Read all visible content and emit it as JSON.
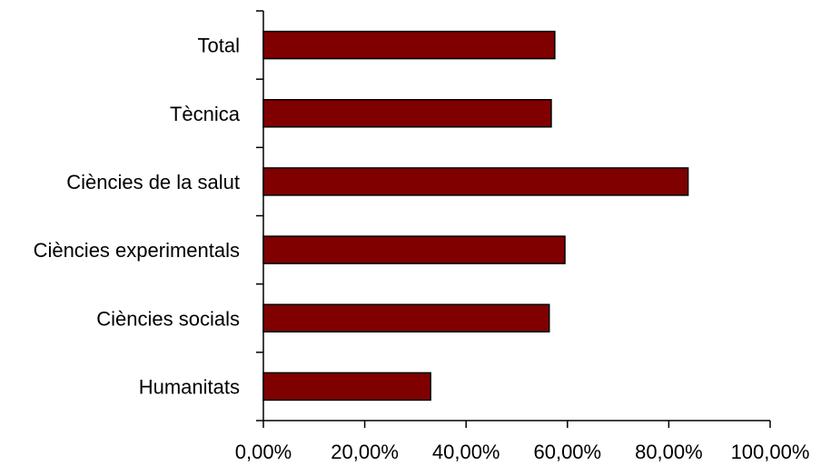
{
  "chart_data": {
    "type": "bar",
    "orientation": "horizontal",
    "title": "",
    "xlabel": "",
    "ylabel": "",
    "categories": [
      "Total",
      "Tècnica",
      "Ciències de la salut",
      "Ciències experimentals",
      "Ciències socials",
      "Humanitats"
    ],
    "values": [
      57.5,
      56.8,
      83.8,
      59.5,
      56.4,
      33.0
    ],
    "value_unit": "%",
    "xlim": [
      0,
      100
    ],
    "x_ticks": [
      0,
      20,
      40,
      60,
      80,
      100
    ],
    "x_tick_labels": [
      "0,00%",
      "20,00%",
      "40,00%",
      "60,00%",
      "80,00%",
      "100,00%"
    ],
    "bar_color": "#800000",
    "grid": false,
    "legend": "none"
  }
}
